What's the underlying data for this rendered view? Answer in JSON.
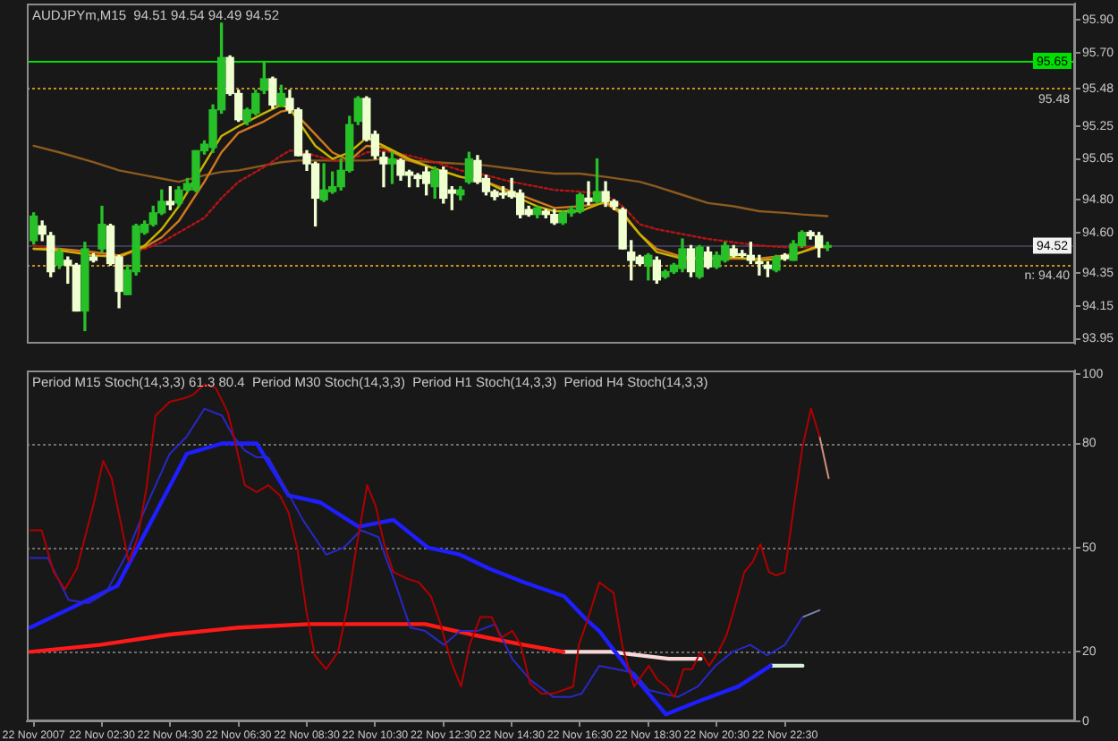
{
  "chart_data": [
    {
      "type": "candlestick",
      "title": "AUDJPYm,M15  94.51 94.54 94.49 94.52",
      "x": [
        "2007-11-22T00:30",
        "2007-11-22T00:45",
        "2007-11-22T01:00",
        "2007-11-22T01:15",
        "2007-11-22T01:30",
        "2007-11-22T01:45",
        "2007-11-22T02:00",
        "2007-11-22T02:15",
        "2007-11-22T02:30",
        "2007-11-22T02:45",
        "2007-11-22T03:00",
        "2007-11-22T03:15",
        "2007-11-22T03:30",
        "2007-11-22T03:45",
        "2007-11-22T04:00",
        "2007-11-22T04:15",
        "2007-11-22T04:30",
        "2007-11-22T04:45",
        "2007-11-22T05:00",
        "2007-11-22T05:15",
        "2007-11-22T05:30",
        "2007-11-22T05:45",
        "2007-11-22T06:00",
        "2007-11-22T06:15",
        "2007-11-22T06:30",
        "2007-11-22T06:45",
        "2007-11-22T07:00",
        "2007-11-22T07:15",
        "2007-11-22T07:30",
        "2007-11-22T07:45",
        "2007-11-22T08:00",
        "2007-11-22T08:15",
        "2007-11-22T08:30",
        "2007-11-22T08:45",
        "2007-11-22T09:00",
        "2007-11-22T09:15",
        "2007-11-22T09:30",
        "2007-11-22T09:45",
        "2007-11-22T10:00",
        "2007-11-22T10:15",
        "2007-11-22T10:30",
        "2007-11-22T10:45",
        "2007-11-22T11:00",
        "2007-11-22T11:15",
        "2007-11-22T11:30",
        "2007-11-22T11:45",
        "2007-11-22T12:00",
        "2007-11-22T12:15",
        "2007-11-22T12:30",
        "2007-11-22T12:45",
        "2007-11-22T13:00",
        "2007-11-22T13:15",
        "2007-11-22T13:30",
        "2007-11-22T13:45",
        "2007-11-22T14:00",
        "2007-11-22T14:15",
        "2007-11-22T14:30",
        "2007-11-22T14:45",
        "2007-11-22T15:00",
        "2007-11-22T15:15",
        "2007-11-22T15:30",
        "2007-11-22T15:45",
        "2007-11-22T16:00",
        "2007-11-22T16:15",
        "2007-11-22T16:30",
        "2007-11-22T16:45",
        "2007-11-22T17:00",
        "2007-11-22T17:15",
        "2007-11-22T17:30",
        "2007-11-22T17:45",
        "2007-11-22T18:00",
        "2007-11-22T18:15",
        "2007-11-22T18:30",
        "2007-11-22T18:45",
        "2007-11-22T19:00",
        "2007-11-22T19:15",
        "2007-11-22T19:30",
        "2007-11-22T19:45",
        "2007-11-22T20:00",
        "2007-11-22T20:15",
        "2007-11-22T20:30",
        "2007-11-22T20:45",
        "2007-11-22T21:00",
        "2007-11-22T21:15",
        "2007-11-22T21:30",
        "2007-11-22T21:45",
        "2007-11-22T22:00",
        "2007-11-22T22:15",
        "2007-11-22T22:30",
        "2007-11-22T22:45",
        "2007-11-22T23:00",
        "2007-11-22T23:15",
        "2007-11-22T23:30",
        "2007-11-22T23:45"
      ],
      "ohlc": [
        [
          94.55,
          94.72,
          94.53,
          94.7
        ],
        [
          94.64,
          94.67,
          94.55,
          94.59
        ],
        [
          94.58,
          94.6,
          94.33,
          94.36
        ],
        [
          94.4,
          94.5,
          94.38,
          94.48
        ],
        [
          94.43,
          94.45,
          94.29,
          94.4
        ],
        [
          94.4,
          94.41,
          94.12,
          94.12
        ],
        [
          94.12,
          94.54,
          94.0,
          94.5
        ],
        [
          94.45,
          94.47,
          94.42,
          94.43
        ],
        [
          94.5,
          94.76,
          94.48,
          94.65
        ],
        [
          94.64,
          94.65,
          94.4,
          94.41
        ],
        [
          94.45,
          94.46,
          94.14,
          94.24
        ],
        [
          94.22,
          94.4,
          94.22,
          94.37
        ],
        [
          94.36,
          94.65,
          94.34,
          94.64
        ],
        [
          94.6,
          94.67,
          94.59,
          94.65
        ],
        [
          94.65,
          94.76,
          94.64,
          94.72
        ],
        [
          94.72,
          94.86,
          94.71,
          94.79
        ],
        [
          94.79,
          94.88,
          94.74,
          94.77
        ],
        [
          94.78,
          94.88,
          94.76,
          94.86
        ],
        [
          94.86,
          94.93,
          94.85,
          94.9
        ],
        [
          94.86,
          95.1,
          94.85,
          95.1
        ],
        [
          95.1,
          95.16,
          95.08,
          95.14
        ],
        [
          95.12,
          95.38,
          95.09,
          95.35
        ],
        [
          95.35,
          95.88,
          95.33,
          95.67
        ],
        [
          95.67,
          95.68,
          95.44,
          95.45
        ],
        [
          95.45,
          95.47,
          95.28,
          95.29
        ],
        [
          95.28,
          95.36,
          95.26,
          95.35
        ],
        [
          95.33,
          95.47,
          95.32,
          95.45
        ],
        [
          95.47,
          95.64,
          95.45,
          95.54
        ],
        [
          95.54,
          95.55,
          95.36,
          95.38
        ],
        [
          95.38,
          95.5,
          95.37,
          95.45
        ],
        [
          95.42,
          95.47,
          95.33,
          95.35
        ],
        [
          95.35,
          95.36,
          95.07,
          95.07
        ],
        [
          95.08,
          95.1,
          94.98,
          95.02
        ],
        [
          95.02,
          95.03,
          94.64,
          94.81
        ],
        [
          94.8,
          95.02,
          94.79,
          94.86
        ],
        [
          94.85,
          94.97,
          94.84,
          94.88
        ],
        [
          94.88,
          95.05,
          94.86,
          94.98
        ],
        [
          94.98,
          95.31,
          94.97,
          95.26
        ],
        [
          95.28,
          95.43,
          95.26,
          95.42
        ],
        [
          95.42,
          95.43,
          95.16,
          95.17
        ],
        [
          95.2,
          95.22,
          95.05,
          95.07
        ],
        [
          95.06,
          95.09,
          94.88,
          95.02
        ],
        [
          95.02,
          95.09,
          94.9,
          95.05
        ],
        [
          95.04,
          95.05,
          94.92,
          94.95
        ],
        [
          94.97,
          94.98,
          94.88,
          94.95
        ],
        [
          94.95,
          94.96,
          94.88,
          94.93
        ],
        [
          94.97,
          95.0,
          94.83,
          94.9
        ],
        [
          94.88,
          95.0,
          94.81,
          94.98
        ],
        [
          94.98,
          95.0,
          94.78,
          94.81
        ],
        [
          94.86,
          94.88,
          94.74,
          94.84
        ],
        [
          94.83,
          94.88,
          94.8,
          94.86
        ],
        [
          94.91,
          95.09,
          94.9,
          95.05
        ],
        [
          95.04,
          95.07,
          94.9,
          94.91
        ],
        [
          94.93,
          94.95,
          94.83,
          94.85
        ],
        [
          94.85,
          94.86,
          94.8,
          94.82
        ],
        [
          94.84,
          94.88,
          94.81,
          94.83
        ],
        [
          94.85,
          94.93,
          94.81,
          94.82
        ],
        [
          94.84,
          94.86,
          94.69,
          94.71
        ],
        [
          94.74,
          94.76,
          94.7,
          94.71
        ],
        [
          94.71,
          94.76,
          94.69,
          94.75
        ],
        [
          94.73,
          94.74,
          94.69,
          94.71
        ],
        [
          94.71,
          94.74,
          94.65,
          94.66
        ],
        [
          94.66,
          94.73,
          94.65,
          94.72
        ],
        [
          94.72,
          94.76,
          94.7,
          94.74
        ],
        [
          94.73,
          94.84,
          94.72,
          94.83
        ],
        [
          94.81,
          94.91,
          94.77,
          94.79
        ],
        [
          94.79,
          95.05,
          94.78,
          94.85
        ],
        [
          94.85,
          94.91,
          94.76,
          94.79
        ],
        [
          94.79,
          94.8,
          94.74,
          94.76
        ],
        [
          94.74,
          94.75,
          94.5,
          94.5
        ],
        [
          94.48,
          94.55,
          94.31,
          94.43
        ],
        [
          94.45,
          94.46,
          94.4,
          94.41
        ],
        [
          94.4,
          94.47,
          94.31,
          94.46
        ],
        [
          94.43,
          94.45,
          94.29,
          94.31
        ],
        [
          94.33,
          94.37,
          94.32,
          94.36
        ],
        [
          94.36,
          94.41,
          94.35,
          94.4
        ],
        [
          94.38,
          94.56,
          94.36,
          94.5
        ],
        [
          94.5,
          94.52,
          94.33,
          94.36
        ],
        [
          94.33,
          94.52,
          94.32,
          94.51
        ],
        [
          94.48,
          94.51,
          94.38,
          94.39
        ],
        [
          94.39,
          94.48,
          94.38,
          94.46
        ],
        [
          94.43,
          94.54,
          94.42,
          94.52
        ],
        [
          94.5,
          94.52,
          94.45,
          94.46
        ],
        [
          94.47,
          94.49,
          94.45,
          94.46
        ],
        [
          94.46,
          94.54,
          94.41,
          94.43
        ],
        [
          94.42,
          94.46,
          94.34,
          94.41
        ],
        [
          94.4,
          94.42,
          94.33,
          94.38
        ],
        [
          94.37,
          94.46,
          94.36,
          94.45
        ],
        [
          94.46,
          94.47,
          94.43,
          94.44
        ],
        [
          94.43,
          94.55,
          94.43,
          94.53
        ],
        [
          94.52,
          94.61,
          94.51,
          94.6
        ],
        [
          94.6,
          94.61,
          94.56,
          94.58
        ],
        [
          94.58,
          94.6,
          94.45,
          94.51
        ],
        [
          94.51,
          94.54,
          94.49,
          94.52
        ]
      ],
      "colors": [
        "#28c028",
        "#f0ffd0",
        "#f0ffd0",
        "#28c028",
        "#f0ffd0",
        "#f0ffd0",
        "#28c028",
        "#f0ffd0",
        "#28c028",
        "#f0ffd0",
        "#f0ffd0",
        "#28c028",
        "#28c028",
        "#28c028",
        "#28c028",
        "#28c028",
        "#f0ffd0",
        "#28c028",
        "#28c028",
        "#28c028",
        "#28c028",
        "#28c028",
        "#28c028",
        "#f0ffd0",
        "#f0ffd0",
        "#28c028",
        "#28c028",
        "#28c028",
        "#f0ffd0",
        "#28c028",
        "#f0ffd0",
        "#f0ffd0",
        "#f0ffd0",
        "#f0ffd0",
        "#28c028",
        "#28c028",
        "#28c028",
        "#28c028",
        "#28c028",
        "#f0ffd0",
        "#f0ffd0",
        "#f0ffd0",
        "#28c028",
        "#f0ffd0",
        "#f0ffd0",
        "#f0ffd0",
        "#f0ffd0",
        "#28c028",
        "#f0ffd0",
        "#f0ffd0",
        "#28c028",
        "#28c028",
        "#f0ffd0",
        "#f0ffd0",
        "#f0ffd0",
        "#f0ffd0",
        "#f0ffd0",
        "#f0ffd0",
        "#f0ffd0",
        "#28c028",
        "#f0ffd0",
        "#f0ffd0",
        "#28c028",
        "#28c028",
        "#28c028",
        "#f0ffd0",
        "#28c028",
        "#f0ffd0",
        "#f0ffd0",
        "#f0ffd0",
        "#f0ffd0",
        "#f0ffd0",
        "#28c028",
        "#f0ffd0",
        "#28c028",
        "#28c028",
        "#28c028",
        "#f0ffd0",
        "#28c028",
        "#f0ffd0",
        "#28c028",
        "#28c028",
        "#f0ffd0",
        "#f0ffd0",
        "#f0ffd0",
        "#f0ffd0",
        "#f0ffd0",
        "#28c028",
        "#f0ffd0",
        "#28c028",
        "#28c028",
        "#f0ffd0",
        "#f0ffd0",
        "#28c028"
      ],
      "series": [
        {
          "type": "line",
          "color": "#c8b400",
          "x": [
            "2007-11-22T00:30",
            "2007-11-22T01:15",
            "2007-11-22T02:15",
            "2007-11-22T03:00",
            "2007-11-22T03:45",
            "2007-11-22T04:15",
            "2007-11-22T04:45",
            "2007-11-22T05:30",
            "2007-11-22T06:00",
            "2007-11-22T06:30",
            "2007-11-22T07:15",
            "2007-11-22T07:45",
            "2007-11-22T08:00",
            "2007-11-22T08:15",
            "2007-11-22T08:45",
            "2007-11-22T09:15",
            "2007-11-22T09:45",
            "2007-11-22T10:15",
            "2007-11-22T10:45",
            "2007-11-22T11:30",
            "2007-11-22T12:15",
            "2007-11-22T13:00",
            "2007-11-22T13:45",
            "2007-11-22T14:30",
            "2007-11-22T15:15",
            "2007-11-22T15:45",
            "2007-11-22T16:30",
            "2007-11-22T17:15",
            "2007-11-22T17:45",
            "2007-11-22T18:15",
            "2007-11-22T18:45",
            "2007-11-22T19:30",
            "2007-11-22T20:15",
            "2007-11-22T21:00",
            "2007-11-22T21:45",
            "2007-11-22T22:30",
            "2007-11-22T23:00",
            "2007-11-22T23:30",
            "2007-11-22T23:45"
          ],
          "values": [
            94.5,
            94.49,
            94.46,
            94.45,
            94.52,
            94.62,
            94.76,
            95.02,
            95.19,
            95.25,
            95.33,
            95.38,
            95.36,
            95.28,
            95.13,
            95.05,
            95.09,
            95.18,
            95.13,
            95.05,
            94.99,
            94.94,
            94.91,
            94.83,
            94.76,
            94.73,
            94.73,
            94.79,
            94.72,
            94.59,
            94.48,
            94.44,
            94.44,
            94.45,
            94.43,
            94.44,
            94.48,
            94.52,
            94.51
          ]
        },
        {
          "type": "line",
          "color": "#d2781e",
          "x": [
            "2007-11-22T00:30",
            "2007-11-22T01:15",
            "2007-11-22T02:15",
            "2007-11-22T03:00",
            "2007-11-22T03:45",
            "2007-11-22T04:15",
            "2007-11-22T04:45",
            "2007-11-22T05:30",
            "2007-11-22T06:00",
            "2007-11-22T06:30",
            "2007-11-22T07:15",
            "2007-11-22T07:45",
            "2007-11-22T08:00",
            "2007-11-22T08:15",
            "2007-11-22T08:45",
            "2007-11-22T09:15",
            "2007-11-22T09:45",
            "2007-11-22T10:15",
            "2007-11-22T10:45",
            "2007-11-22T11:30",
            "2007-11-22T12:15",
            "2007-11-22T13:00",
            "2007-11-22T13:45",
            "2007-11-22T14:30",
            "2007-11-22T15:15",
            "2007-11-22T15:45",
            "2007-11-22T16:30",
            "2007-11-22T17:15",
            "2007-11-22T17:45",
            "2007-11-22T18:15",
            "2007-11-22T18:45",
            "2007-11-22T19:30",
            "2007-11-22T20:15",
            "2007-11-22T21:00",
            "2007-11-22T21:45",
            "2007-11-22T22:30",
            "2007-11-22T23:00",
            "2007-11-22T23:30",
            "2007-11-22T23:45"
          ],
          "values": [
            94.5,
            94.5,
            94.48,
            94.46,
            94.51,
            94.57,
            94.67,
            94.91,
            95.09,
            95.21,
            95.28,
            95.34,
            95.35,
            95.31,
            95.2,
            95.09,
            95.04,
            95.13,
            95.12,
            95.04,
            94.99,
            94.94,
            94.91,
            94.85,
            94.79,
            94.75,
            94.76,
            94.78,
            94.71,
            94.59,
            94.5,
            94.45,
            94.44,
            94.44,
            94.44,
            94.46,
            94.48,
            94.51,
            94.51
          ]
        },
        {
          "type": "line",
          "color": "#b41414",
          "line_style": "dotted",
          "x": [
            "2007-11-22T00:30",
            "2007-11-22T01:15",
            "2007-11-22T02:15",
            "2007-11-22T03:00",
            "2007-11-22T03:45",
            "2007-11-22T04:15",
            "2007-11-22T04:45",
            "2007-11-22T05:30",
            "2007-11-22T06:00",
            "2007-11-22T06:30",
            "2007-11-22T07:15",
            "2007-11-22T07:45",
            "2007-11-22T08:00",
            "2007-11-22T08:15",
            "2007-11-22T08:45",
            "2007-11-22T09:15",
            "2007-11-22T09:45",
            "2007-11-22T10:15",
            "2007-11-22T10:45",
            "2007-11-22T11:30",
            "2007-11-22T12:15",
            "2007-11-22T13:00",
            "2007-11-22T13:45",
            "2007-11-22T14:30",
            "2007-11-22T15:15",
            "2007-11-22T15:45",
            "2007-11-22T16:30",
            "2007-11-22T17:15",
            "2007-11-22T17:45",
            "2007-11-22T18:15",
            "2007-11-22T18:45",
            "2007-11-22T19:30",
            "2007-11-22T20:15",
            "2007-11-22T21:00",
            "2007-11-22T21:45",
            "2007-11-22T22:30",
            "2007-11-22T23:00",
            "2007-11-22T23:30",
            "2007-11-22T23:45"
          ],
          "values": [
            94.52,
            94.5,
            94.47,
            94.45,
            94.5,
            94.54,
            94.6,
            94.69,
            94.81,
            94.91,
            95.0,
            95.07,
            95.1,
            95.1,
            95.07,
            95.04,
            95.04,
            95.09,
            95.1,
            95.07,
            95.03,
            94.98,
            94.95,
            94.91,
            94.88,
            94.86,
            94.85,
            94.83,
            94.76,
            94.65,
            94.62,
            94.59,
            94.56,
            94.54,
            94.52,
            94.51,
            94.51,
            94.51,
            94.51
          ]
        },
        {
          "type": "line",
          "color": "#8c5a1e",
          "x": [
            "2007-11-22T00:30",
            "2007-11-22T01:15",
            "2007-11-22T02:15",
            "2007-11-22T03:00",
            "2007-11-22T03:45",
            "2007-11-22T04:15",
            "2007-11-22T04:45",
            "2007-11-22T05:30",
            "2007-11-22T06:00",
            "2007-11-22T06:30",
            "2007-11-22T07:15",
            "2007-11-22T07:45",
            "2007-11-22T08:15",
            "2007-11-22T09:15",
            "2007-11-22T10:15",
            "2007-11-22T10:45",
            "2007-11-22T11:30",
            "2007-11-22T12:15",
            "2007-11-22T13:00",
            "2007-11-22T13:45",
            "2007-11-22T14:30",
            "2007-11-22T15:15",
            "2007-11-22T15:45",
            "2007-11-22T16:30",
            "2007-11-22T17:15",
            "2007-11-22T18:15",
            "2007-11-22T18:45",
            "2007-11-22T19:30",
            "2007-11-22T20:15",
            "2007-11-22T21:00",
            "2007-11-22T21:45",
            "2007-11-22T22:30",
            "2007-11-22T23:00",
            "2007-11-22T23:45"
          ],
          "values": [
            95.13,
            95.09,
            95.03,
            94.98,
            94.95,
            94.93,
            94.91,
            94.95,
            94.97,
            94.98,
            95.01,
            95.03,
            95.04,
            95.04,
            95.04,
            95.05,
            95.04,
            95.03,
            95.02,
            95.01,
            94.99,
            94.97,
            94.96,
            94.96,
            94.94,
            94.91,
            94.88,
            94.83,
            94.78,
            94.76,
            94.73,
            94.72,
            94.71,
            94.7
          ]
        }
      ],
      "xlim": [
        "2007-11-22T00:18",
        "2007-11-23T07:00"
      ],
      "ylim": [
        93.92,
        96.0
      ],
      "yticks": [
        {
          "value": 95.9,
          "label": "95.90"
        },
        {
          "value": 95.7,
          "label": "95.70"
        },
        95.48,
        95.25,
        95.05,
        {
          "value": 94.8,
          "label": "94.80"
        },
        {
          "value": 94.6,
          "label": "94.60"
        },
        94.35,
        94.15,
        93.95
      ],
      "ref_lines": [
        {
          "axis": "y",
          "value": 95.65,
          "label": "95.65",
          "color": "#00e000",
          "line_style": "solid"
        },
        {
          "axis": "y",
          "value": 95.48,
          "label": "95.48",
          "color": "#c8901e",
          "line_style": "dotted"
        },
        {
          "axis": "y",
          "value": 94.52,
          "label": "94.52",
          "color": "#3c3c50",
          "line_style": "solid"
        },
        {
          "axis": "y",
          "value": 94.4,
          "label": "n: 94.40",
          "color": "#c8901e",
          "line_style": "dotted"
        }
      ],
      "tick_labels": "y"
    },
    {
      "type": "line",
      "title": "Period M15 Stoch(14,3,3) 61.3 80.4  Period M30 Stoch(14,3,3)  Period H1 Stoch(14,3,3)  Period H4 Stoch(14,3,3)",
      "series": [
        {
          "color": "#b00000",
          "x": [
            "2007-11-22T00:24",
            "2007-11-22T00:44",
            "2007-11-22T01:05",
            "2007-11-22T01:25",
            "2007-11-22T01:46",
            "2007-11-22T02:16",
            "2007-11-22T02:32",
            "2007-11-22T02:47",
            "2007-11-22T03:02",
            "2007-11-22T03:17",
            "2007-11-22T03:33",
            "2007-11-22T03:48",
            "2007-11-22T04:04",
            "2007-11-22T04:29",
            "2007-11-22T04:55",
            "2007-11-22T05:10",
            "2007-11-22T05:30",
            "2007-11-22T05:50",
            "2007-11-22T06:11",
            "2007-11-22T06:26",
            "2007-11-22T06:41",
            "2007-11-22T07:02",
            "2007-11-22T07:22",
            "2007-11-22T07:43",
            "2007-11-22T07:58",
            "2007-11-22T08:13",
            "2007-11-22T08:29",
            "2007-11-22T08:44",
            "2007-11-22T09:04",
            "2007-11-22T09:25",
            "2007-11-22T09:40",
            "2007-11-22T09:55",
            "2007-11-22T10:16",
            "2007-11-22T10:31",
            "2007-11-22T10:46",
            "2007-11-22T11:02",
            "2007-11-22T11:27",
            "2007-11-22T11:47",
            "2007-11-22T12:08",
            "2007-11-22T12:23",
            "2007-11-22T12:44",
            "2007-11-22T13:01",
            "2007-11-22T13:16",
            "2007-11-22T13:35",
            "2007-11-22T13:55",
            "2007-11-22T14:11",
            "2007-11-22T14:31",
            "2007-11-22T14:46",
            "2007-11-22T15:02",
            "2007-11-22T15:22",
            "2007-11-22T15:43",
            "2007-11-22T16:18",
            "2007-11-22T16:28",
            "2007-11-22T16:43",
            "2007-11-22T17:04",
            "2007-11-22T17:29",
            "2007-11-22T17:44",
            "2007-11-22T18:05",
            "2007-11-22T18:31",
            "2007-11-22T18:46",
            "2007-11-22T19:01",
            "2007-11-22T19:16",
            "2007-11-22T19:32",
            "2007-11-22T19:47",
            "2007-11-22T20:02",
            "2007-11-22T20:17",
            "2007-11-22T20:33",
            "2007-11-22T20:48",
            "2007-11-22T21:04",
            "2007-11-22T21:19",
            "2007-11-22T21:34",
            "2007-11-22T21:47",
            "2007-11-22T22:02",
            "2007-11-22T22:15",
            "2007-11-22T22:30",
            "2007-11-22T22:46",
            "2007-11-22T23:01",
            "2007-11-22T23:16",
            "2007-11-22T23:31"
          ],
          "values": [
            55,
            55,
            43,
            38,
            44,
            63,
            75,
            70,
            58,
            46,
            53,
            67,
            88,
            92,
            93,
            94,
            97,
            96,
            89,
            79,
            68,
            66,
            68,
            65,
            60,
            50,
            32,
            19,
            15,
            20,
            32,
            48,
            68,
            62,
            51,
            43,
            41,
            40,
            36,
            29,
            17,
            10,
            22,
            30,
            30,
            24,
            26,
            22,
            11,
            8,
            8,
            10,
            22,
            29,
            40,
            37,
            22,
            10,
            16,
            12,
            10,
            7,
            15,
            15,
            20,
            16,
            20,
            25,
            34,
            43,
            46,
            51,
            43,
            42,
            43,
            62,
            79,
            90,
            82
          ]
        },
        {
          "color": "#2828c8",
          "x": [
            "2007-11-22T00:24",
            "2007-11-22T00:55",
            "2007-11-22T01:31",
            "2007-11-22T02:06",
            "2007-11-22T02:37",
            "2007-11-22T03:13",
            "2007-11-22T03:48",
            "2007-11-22T04:29",
            "2007-11-22T04:59",
            "2007-11-22T05:30",
            "2007-11-22T06:01",
            "2007-11-22T06:21",
            "2007-11-22T06:41",
            "2007-11-22T07:02",
            "2007-11-22T07:22",
            "2007-11-22T07:53",
            "2007-11-22T08:23",
            "2007-11-22T09:04",
            "2007-11-22T09:35",
            "2007-11-22T10:05",
            "2007-11-22T10:36",
            "2007-11-22T11:07",
            "2007-11-22T11:32",
            "2007-11-22T11:58",
            "2007-11-22T12:31",
            "2007-11-22T12:59",
            "2007-11-22T13:30",
            "2007-11-22T14:01",
            "2007-11-22T14:31",
            "2007-11-22T15:02",
            "2007-11-22T15:43",
            "2007-11-22T16:13",
            "2007-11-22T16:33",
            "2007-11-22T17:04",
            "2007-11-22T17:34",
            "2007-11-22T18:05",
            "2007-11-22T18:31",
            "2007-11-22T18:56",
            "2007-11-22T19:22",
            "2007-11-22T19:57",
            "2007-11-22T20:28",
            "2007-11-22T20:58",
            "2007-11-22T21:29",
            "2007-11-22T21:59",
            "2007-11-22T22:30",
            "2007-11-22T23:01"
          ],
          "values": [
            47,
            47,
            35,
            34,
            37,
            48,
            62,
            77,
            82,
            90,
            88,
            82,
            78,
            76,
            76,
            67,
            58,
            48,
            50,
            55,
            53,
            39,
            27,
            26,
            22,
            26,
            26,
            28,
            18,
            12,
            7,
            7,
            8,
            16,
            15,
            14,
            9,
            8,
            7,
            10,
            16,
            20,
            22,
            19,
            22,
            30
          ]
        },
        {
          "color": "#1e1eff",
          "x": [
            "2007-11-22T00:24",
            "2007-11-22T02:57",
            "2007-11-22T04:59",
            "2007-11-22T06:01",
            "2007-11-22T07:02",
            "2007-11-22T07:58",
            "2007-11-22T08:54",
            "2007-11-22T10:01",
            "2007-11-22T11:02",
            "2007-11-22T12:03",
            "2007-11-22T12:59",
            "2007-11-22T13:50",
            "2007-11-22T14:52",
            "2007-11-22T16:02",
            "2007-11-22T16:43",
            "2007-11-22T17:04",
            "2007-11-22T17:55",
            "2007-11-22T19:01",
            "2007-11-22T20:02",
            "2007-11-22T21:08",
            "2007-11-22T22:05"
          ],
          "values": [
            27,
            39,
            77,
            80,
            80,
            65,
            63,
            56,
            58,
            50,
            48,
            44,
            40,
            36,
            29,
            26,
            15,
            2,
            6,
            10,
            16
          ]
        },
        {
          "color": "#ff1a1a",
          "x": [
            "2007-11-22T00:24",
            "2007-11-22T02:26",
            "2007-11-22T04:29",
            "2007-11-22T06:31",
            "2007-11-22T08:34",
            "2007-11-22T10:36",
            "2007-11-22T11:58",
            "2007-11-22T13:19",
            "2007-11-22T14:52",
            "2007-11-22T16:01"
          ],
          "values": [
            20,
            22,
            25,
            27,
            28,
            28,
            28,
            25,
            22,
            20
          ]
        },
        {
          "color": "#d09080",
          "x": [
            "2007-11-22T23:31",
            "2007-11-22T23:47"
          ],
          "values": [
            82,
            70
          ]
        },
        {
          "color": "#7888a8",
          "x": [
            "2007-11-22T23:01",
            "2007-11-22T23:31"
          ],
          "values": [
            30,
            32
          ]
        },
        {
          "color": "#d8f0d8",
          "x": [
            "2007-11-22T22:05",
            "2007-11-22T23:01"
          ],
          "values": [
            16,
            16
          ]
        },
        {
          "color": "#f8d8d8",
          "x": [
            "2007-11-22T16:01",
            "2007-11-22T17:24",
            "2007-11-22T19:06",
            "2007-11-22T20:02"
          ],
          "values": [
            20,
            20,
            18,
            18
          ]
        }
      ],
      "xlim": [
        "2007-11-22T00:18",
        "2007-11-23T07:00"
      ],
      "ylim": [
        0,
        101
      ],
      "xticks": [
        {
          "value": "2007-11-22T00:30",
          "label": "22 Nov 2007"
        },
        {
          "value": "2007-11-22T02:30",
          "label": "22 Nov 02:30"
        },
        {
          "value": "2007-11-22T04:30",
          "label": "22 Nov 04:30"
        },
        {
          "value": "2007-11-22T06:30",
          "label": "22 Nov 06:30"
        },
        {
          "value": "2007-11-22T08:30",
          "label": "22 Nov 08:30"
        },
        {
          "value": "2007-11-22T10:30",
          "label": "22 Nov 10:30"
        },
        {
          "value": "2007-11-22T12:30",
          "label": "22 Nov 12:30"
        },
        {
          "value": "2007-11-22T14:30",
          "label": "22 Nov 14:30"
        },
        {
          "value": "2007-11-22T16:30",
          "label": "22 Nov 16:30"
        },
        {
          "value": "2007-11-22T18:30",
          "label": "22 Nov 18:30"
        },
        {
          "value": "2007-11-22T20:30",
          "label": "22 Nov 20:30"
        },
        {
          "value": "2007-11-22T22:30",
          "label": "22 Nov 22:30"
        }
      ],
      "yticks": [
        0,
        20,
        50,
        80,
        100
      ],
      "ref_lines": [
        {
          "axis": "y",
          "value": 20,
          "color": "#6e6e6e",
          "line_style": "dotted"
        },
        {
          "axis": "y",
          "value": 50,
          "color": "#6e6e6e",
          "line_style": "dotted"
        },
        {
          "axis": "y",
          "value": 80,
          "color": "#6e6e6e",
          "line_style": "dotted"
        }
      ]
    }
  ]
}
